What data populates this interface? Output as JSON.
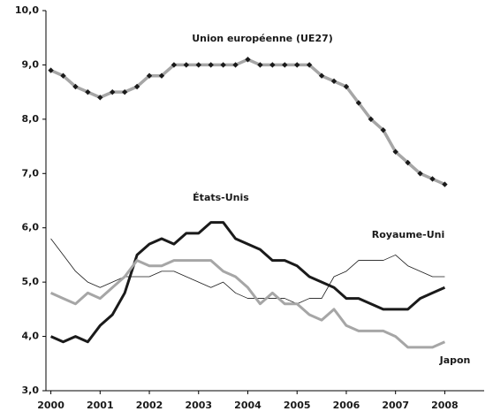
{
  "chart_data": {
    "type": "line",
    "x": [
      2000,
      2000.25,
      2000.5,
      2000.75,
      2001,
      2001.25,
      2001.5,
      2001.75,
      2002,
      2002.25,
      2002.5,
      2002.75,
      2003,
      2003.25,
      2003.5,
      2003.75,
      2004,
      2004.25,
      2004.5,
      2004.75,
      2005,
      2005.25,
      2005.5,
      2005.75,
      2006,
      2006.25,
      2006.5,
      2006.75,
      2007,
      2007.25,
      2007.5,
      2007.75,
      2008
    ],
    "xlim": [
      1999.9,
      2008.8
    ],
    "xticks": [
      2000,
      2001,
      2002,
      2003,
      2004,
      2005,
      2006,
      2007,
      2008
    ],
    "ylim": [
      3,
      10
    ],
    "yticks": [
      {
        "value": 3,
        "label": "3,0"
      },
      {
        "value": 4,
        "label": "4,0"
      },
      {
        "value": 5,
        "label": "5,0"
      },
      {
        "value": 6,
        "label": "6,0"
      },
      {
        "value": 7,
        "label": "7,0"
      },
      {
        "value": 8,
        "label": "8,0"
      },
      {
        "value": 9,
        "label": "9,0"
      },
      {
        "value": 10,
        "label": "10,0"
      }
    ],
    "grid": false,
    "series": [
      {
        "name": "Union européenne (UE27)",
        "color": "#a6a6a6",
        "width": 3.5,
        "markers": true,
        "values": [
          8.9,
          8.8,
          8.6,
          8.5,
          8.4,
          8.5,
          8.5,
          8.6,
          8.8,
          8.8,
          9.0,
          9.0,
          9.0,
          9.0,
          9.0,
          9.0,
          9.1,
          9.0,
          9.0,
          9.0,
          9.0,
          9.0,
          8.8,
          8.7,
          8.6,
          8.3,
          8.0,
          7.8,
          7.4,
          7.2,
          7.0,
          6.9,
          6.8
        ]
      },
      {
        "name": "États-Unis",
        "color": "#1a1a1a",
        "width": 3,
        "markers": false,
        "values": [
          4.0,
          3.9,
          4.0,
          3.9,
          4.2,
          4.4,
          4.8,
          5.5,
          5.7,
          5.8,
          5.7,
          5.9,
          5.9,
          6.1,
          6.1,
          5.8,
          5.7,
          5.6,
          5.4,
          5.4,
          5.3,
          5.1,
          5.0,
          4.9,
          4.7,
          4.7,
          4.6,
          4.5,
          4.5,
          4.5,
          4.7,
          4.8,
          4.9
        ]
      },
      {
        "name": "Royaume-Uni",
        "color": "#1a1a1a",
        "width": 0.8,
        "markers": false,
        "values": [
          5.8,
          5.5,
          5.2,
          5.0,
          4.9,
          5.0,
          5.1,
          5.1,
          5.1,
          5.2,
          5.2,
          5.1,
          5.0,
          4.9,
          5.0,
          4.8,
          4.7,
          4.7,
          4.7,
          4.7,
          4.6,
          4.7,
          4.7,
          5.1,
          5.2,
          5.4,
          5.4,
          5.4,
          5.5,
          5.3,
          5.2,
          5.1,
          5.1
        ]
      },
      {
        "name": "Japon",
        "color": "#a6a6a6",
        "width": 3,
        "markers": false,
        "values": [
          4.8,
          4.7,
          4.6,
          4.8,
          4.7,
          4.9,
          5.1,
          5.4,
          5.3,
          5.3,
          5.4,
          5.4,
          5.4,
          5.4,
          5.2,
          5.1,
          4.9,
          4.6,
          4.8,
          4.6,
          4.6,
          4.4,
          4.3,
          4.5,
          4.2,
          4.1,
          4.1,
          4.1,
          4.0,
          3.8,
          3.8,
          3.8,
          3.9
        ]
      }
    ]
  }
}
